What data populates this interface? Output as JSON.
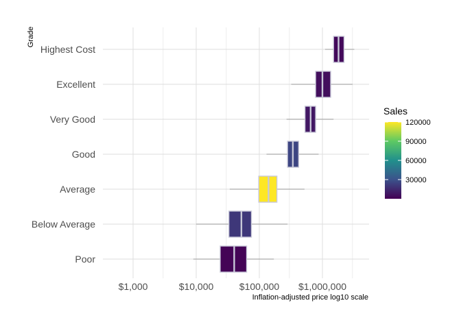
{
  "chart_data": {
    "type": "boxplot",
    "xlabel": "Inflation-adjusted price log10 scale",
    "ylabel": "Grade",
    "x_scale": "log10",
    "xlim": [
      300,
      3000000
    ],
    "x_ticks": [
      {
        "value": 1000,
        "label": "$1,000"
      },
      {
        "value": 10000,
        "label": "$10,000"
      },
      {
        "value": 100000,
        "label": "$100,000"
      },
      {
        "value": 1000000,
        "label": "$1,000,000"
      }
    ],
    "x_minor_ticks": [
      3000,
      30000,
      300000,
      3000000
    ],
    "grid": true,
    "categories": [
      "Poor",
      "Below Average",
      "Average",
      "Good",
      "Very Good",
      "Excellent",
      "Highest Cost"
    ],
    "boxes": [
      {
        "grade": "Poor",
        "whisker_low": 9000,
        "q1": 24000,
        "median": 40000,
        "q3": 63000,
        "whisker_high": 170000,
        "sales": 1000
      },
      {
        "grade": "Below Average",
        "whisker_low": 10000,
        "q1": 33000,
        "median": 52000,
        "q3": 75000,
        "whisker_high": 280000,
        "sales": 20000
      },
      {
        "grade": "Average",
        "whisker_low": 34000,
        "q1": 98000,
        "median": 140000,
        "q3": 190000,
        "whisker_high": 520000,
        "sales": 120000
      },
      {
        "grade": "Good",
        "whisker_low": 130000,
        "q1": 280000,
        "median": 340000,
        "q3": 420000,
        "whisker_high": 870000,
        "sales": 25000
      },
      {
        "grade": "Very Good",
        "whisker_low": 270000,
        "q1": 530000,
        "median": 650000,
        "q3": 780000,
        "whisker_high": 1500000,
        "sales": 8000
      },
      {
        "grade": "Excellent",
        "whisker_low": 320000,
        "q1": 780000,
        "median": 1000000,
        "q3": 1350000,
        "whisker_high": 3000000,
        "sales": 5000
      },
      {
        "grade": "Highest Cost",
        "whisker_low": 1100000,
        "q1": 1500000,
        "median": 1800000,
        "q3": 2200000,
        "whisker_high": 3200000,
        "sales": 3000
      }
    ],
    "legend": {
      "title": "Sales",
      "position": "right",
      "min": 0,
      "max": 120000,
      "ticks": [
        {
          "value": 30000,
          "label": "30000"
        },
        {
          "value": 60000,
          "label": "60000"
        },
        {
          "value": 90000,
          "label": "90000"
        },
        {
          "value": 120000,
          "label": "120000"
        }
      ],
      "colors": [
        "#440154",
        "#3b528b",
        "#21908c",
        "#5dc963",
        "#fde725"
      ]
    },
    "box_outline_color": "#c8c8d8",
    "whisker_color": "#aaaaaa",
    "grid_color": "#dcdcdc"
  }
}
